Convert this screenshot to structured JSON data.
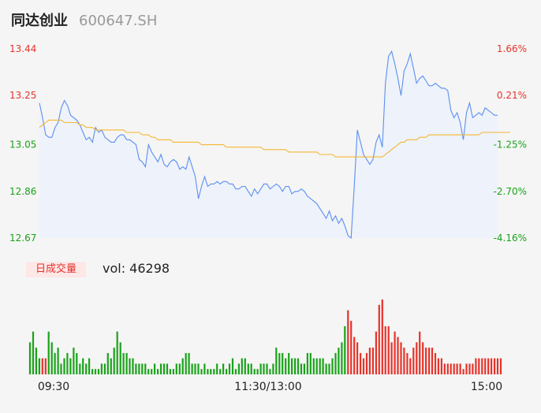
{
  "header": {
    "name": "同达创业",
    "code": "600647.SH"
  },
  "volume_panel": {
    "label": "日成交量",
    "vol_text": "vol: 46298"
  },
  "colors": {
    "up": "#e5332b",
    "down": "#1aa21a",
    "price_line": "#5b8ff0",
    "avg_line": "#f5b731",
    "fill": "#edf2fb"
  },
  "chart_data": [
    {
      "type": "line",
      "title": "",
      "prev_close": 13.19,
      "ylim": [
        12.67,
        13.44
      ],
      "y_ticks": [
        "13.44",
        "13.25",
        "13.05",
        "12.86",
        "12.67"
      ],
      "pct_ticks": [
        "1.66%",
        "0.21%",
        "-1.25%",
        "-2.70%",
        "-4.16%"
      ],
      "x_ticks": [
        "09:30",
        "11:30/13:00",
        "15:00"
      ],
      "series": [
        {
          "values": [
            13.22,
            13.16,
            13.09,
            13.08,
            13.08,
            13.12,
            13.14,
            13.2,
            13.23,
            13.21,
            13.17,
            13.16,
            13.15,
            13.13,
            13.1,
            13.07,
            13.08,
            13.06,
            13.12,
            13.1,
            13.11,
            13.08,
            13.07,
            13.06,
            13.06,
            13.08,
            13.09,
            13.09,
            13.07,
            13.07,
            13.06,
            13.05,
            12.99,
            12.98,
            12.96,
            13.05,
            13.02,
            13.0,
            12.98,
            13.01,
            12.97,
            12.96,
            12.98,
            12.99,
            12.98,
            12.95,
            12.96,
            12.95,
            13.0,
            12.96,
            12.92,
            12.83,
            12.88,
            12.92,
            12.88,
            12.89,
            12.89,
            12.9,
            12.89,
            12.9,
            12.9,
            12.89,
            12.89,
            12.87,
            12.87,
            12.88,
            12.88,
            12.86,
            12.84,
            12.87,
            12.85,
            12.87,
            12.89,
            12.89,
            12.87,
            12.88,
            12.89,
            12.88,
            12.86,
            12.88,
            12.88,
            12.85,
            12.86,
            12.86,
            12.87,
            12.86,
            12.84,
            12.83,
            12.82,
            12.81,
            12.79,
            12.77,
            12.75,
            12.78,
            12.74,
            12.76,
            12.73,
            12.75,
            12.72,
            12.68,
            12.67,
            12.88,
            13.11,
            13.06,
            13.01,
            12.99,
            12.97,
            12.99,
            13.06,
            13.09,
            13.04,
            13.3,
            13.41,
            13.43,
            13.38,
            13.32,
            13.25,
            13.35,
            13.38,
            13.42,
            13.36,
            13.3,
            13.32,
            13.33,
            13.31,
            13.29,
            13.29,
            13.3,
            13.29,
            13.28,
            13.28,
            13.27,
            13.19,
            13.16,
            13.18,
            13.14,
            13.07,
            13.18,
            13.22,
            13.16,
            13.17,
            13.18,
            13.17,
            13.2,
            13.19,
            13.18,
            13.17,
            13.17
          ],
          "color": "#5b8ff0"
        },
        {
          "values": [
            13.12,
            13.13,
            13.14,
            13.15,
            13.15,
            13.15,
            13.15,
            13.15,
            13.14,
            13.14,
            13.14,
            13.14,
            13.14,
            13.13,
            13.13,
            13.12,
            13.12,
            13.12,
            13.11,
            13.11,
            13.11,
            13.11,
            13.11,
            13.11,
            13.11,
            13.11,
            13.11,
            13.11,
            13.1,
            13.1,
            13.1,
            13.1,
            13.1,
            13.09,
            13.09,
            13.09,
            13.08,
            13.08,
            13.07,
            13.07,
            13.07,
            13.07,
            13.07,
            13.06,
            13.06,
            13.06,
            13.06,
            13.06,
            13.06,
            13.06,
            13.06,
            13.06,
            13.05,
            13.05,
            13.05,
            13.05,
            13.05,
            13.05,
            13.05,
            13.05,
            13.04,
            13.04,
            13.04,
            13.04,
            13.04,
            13.04,
            13.04,
            13.04,
            13.04,
            13.04,
            13.04,
            13.04,
            13.03,
            13.03,
            13.03,
            13.03,
            13.03,
            13.03,
            13.03,
            13.03,
            13.02,
            13.02,
            13.02,
            13.02,
            13.02,
            13.02,
            13.02,
            13.02,
            13.02,
            13.02,
            13.01,
            13.01,
            13.01,
            13.01,
            13.01,
            13.0,
            13.0,
            13.0,
            13.0,
            13.0,
            13.0,
            13.0,
            13.0,
            13.0,
            13.0,
            13.0,
            13.0,
            13.0,
            13.0,
            13.0,
            13.0,
            13.01,
            13.02,
            13.03,
            13.04,
            13.05,
            13.06,
            13.06,
            13.07,
            13.07,
            13.07,
            13.07,
            13.08,
            13.08,
            13.08,
            13.09,
            13.09,
            13.09,
            13.09,
            13.09,
            13.09,
            13.09,
            13.09,
            13.09,
            13.09,
            13.09,
            13.09,
            13.09,
            13.09,
            13.09,
            13.09,
            13.09,
            13.1,
            13.1,
            13.1,
            13.1,
            13.1,
            13.1,
            13.1,
            13.1,
            13.1,
            13.1
          ],
          "color": "#f5b731"
        }
      ]
    },
    {
      "type": "bar",
      "title": "",
      "values": [
        6,
        8,
        5,
        3,
        3,
        3,
        8,
        6,
        4,
        5,
        2,
        3,
        4,
        3,
        5,
        4,
        2,
        3,
        2,
        3,
        1,
        1,
        1,
        2,
        2,
        4,
        3,
        5,
        8,
        6,
        4,
        4,
        3,
        3,
        2,
        2,
        2,
        2,
        1,
        1,
        2,
        1,
        2,
        2,
        2,
        1,
        1,
        2,
        2,
        3,
        4,
        4,
        2,
        2,
        2,
        1,
        2,
        1,
        1,
        1,
        2,
        1,
        2,
        1,
        2,
        3,
        1,
        2,
        3,
        3,
        2,
        2,
        1,
        1,
        2,
        2,
        2,
        1,
        2,
        5,
        4,
        4,
        3,
        4,
        3,
        3,
        3,
        2,
        2,
        4,
        4,
        3,
        3,
        3,
        3,
        2,
        2,
        3,
        4,
        5,
        6,
        9,
        12,
        10,
        7,
        6,
        4,
        3,
        4,
        5,
        5,
        8,
        13,
        14,
        9,
        9,
        6,
        8,
        7,
        6,
        5,
        4,
        3,
        5,
        6,
        8,
        6,
        5,
        5,
        5,
        4,
        3,
        3,
        2,
        2,
        2,
        2,
        2,
        2,
        1,
        2,
        2,
        2,
        3,
        3,
        3,
        3,
        3,
        3,
        3,
        3,
        3
      ],
      "directions": [
        "d",
        "d",
        "d",
        "d",
        "u",
        "u",
        "d",
        "d",
        "d",
        "d",
        "d",
        "d",
        "d",
        "d",
        "d",
        "d",
        "d",
        "d",
        "d",
        "d",
        "d",
        "d",
        "d",
        "d",
        "d",
        "d",
        "d",
        "d",
        "d",
        "d",
        "d",
        "d",
        "d",
        "d",
        "d",
        "d",
        "d",
        "d",
        "d",
        "d",
        "d",
        "d",
        "d",
        "d",
        "d",
        "d",
        "d",
        "d",
        "d",
        "d",
        "d",
        "d",
        "d",
        "d",
        "d",
        "d",
        "d",
        "d",
        "d",
        "d",
        "d",
        "d",
        "d",
        "d",
        "d",
        "d",
        "d",
        "d",
        "d",
        "d",
        "d",
        "d",
        "d",
        "d",
        "d",
        "d",
        "d",
        "d",
        "d",
        "d",
        "d",
        "d",
        "d",
        "d",
        "d",
        "d",
        "d",
        "d",
        "d",
        "d",
        "d",
        "d",
        "d",
        "d",
        "d",
        "d",
        "d",
        "d",
        "d",
        "d",
        "d",
        "d",
        "u",
        "u",
        "u",
        "u",
        "u",
        "u",
        "u",
        "u",
        "u",
        "u",
        "u",
        "u",
        "u",
        "u",
        "u",
        "u",
        "u",
        "u",
        "u",
        "u",
        "u",
        "u",
        "u",
        "u",
        "u",
        "u",
        "u",
        "u",
        "u",
        "u",
        "u",
        "u",
        "u",
        "u",
        "u",
        "u",
        "u",
        "u",
        "u",
        "u",
        "u",
        "u",
        "u",
        "u",
        "u",
        "u",
        "u",
        "u",
        "u",
        "u"
      ]
    }
  ]
}
